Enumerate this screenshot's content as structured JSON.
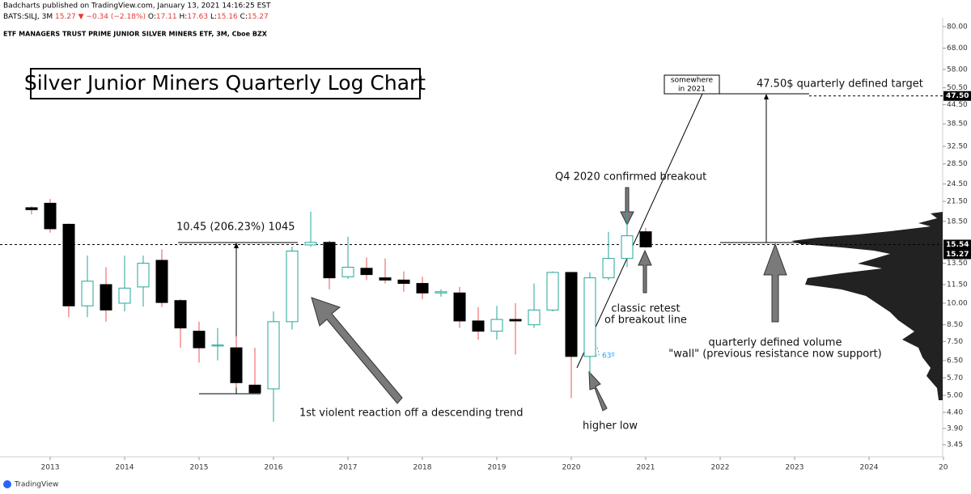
{
  "header": {
    "publisher": "Badcharts published on TradingView.com, January 13, 2021 14:16:25 EST",
    "symbol": "BATS:SILJ, 3M",
    "last": "15.27",
    "change": "▼ −0.34 (−2.18%)",
    "ohlc": [
      {
        "label": "O:",
        "value": "17.11"
      },
      {
        "label": "H:",
        "value": "17.63"
      },
      {
        "label": "L:",
        "value": "15.16"
      },
      {
        "label": "C:",
        "value": "15.27"
      }
    ],
    "instrument": "ETF MANAGERS TRUST PRIME JUNIOR SILVER MINERS ETF, 3M, Cboe BZX"
  },
  "footer": {
    "brand": "TradingView"
  },
  "chart_data": {
    "type": "candlestick",
    "log_scale": true,
    "title": "Silver Junior Miners Quarterly Log Chart",
    "x": [
      2012.75,
      2013,
      2013.25,
      2013.5,
      2013.75,
      2014,
      2014.25,
      2014.5,
      2014.75,
      2015,
      2015.25,
      2015.5,
      2015.75,
      2016,
      2016.25,
      2016.5,
      2016.75,
      2017,
      2017.25,
      2017.5,
      2017.75,
      2018,
      2018.25,
      2018.5,
      2018.75,
      2019,
      2019.25,
      2019.5,
      2019.75,
      2020,
      2020.25,
      2020.5,
      2020.75,
      2021
    ],
    "open": [
      20.5,
      21.2,
      18.1,
      9.8,
      11.5,
      10.0,
      11.3,
      13.8,
      10.2,
      8.1,
      7.25,
      7.15,
      5.4,
      5.25,
      8.7,
      15.5,
      15.8,
      12.2,
      13.0,
      12.1,
      11.9,
      11.6,
      10.8,
      10.8,
      8.75,
      8.1,
      8.85,
      8.5,
      9.5,
      12.6,
      6.7,
      12.1,
      14.0,
      17.11
    ],
    "high": [
      20.7,
      21.9,
      18.2,
      14.3,
      13.1,
      14.3,
      14.3,
      15.0,
      10.3,
      8.7,
      8.3,
      7.8,
      7.15,
      9.4,
      15.3,
      19.9,
      16.0,
      16.5,
      14.1,
      14.0,
      12.7,
      12.2,
      11.1,
      11.3,
      9.7,
      9.8,
      10.0,
      11.6,
      12.7,
      12.6,
      12.6,
      17.1,
      20.1,
      17.63
    ],
    "low": [
      19.5,
      17.0,
      9.0,
      9.0,
      8.7,
      9.4,
      9.75,
      9.7,
      7.15,
      6.4,
      6.5,
      5.3,
      5.1,
      4.1,
      8.2,
      15.3,
      11.1,
      12.0,
      11.9,
      11.6,
      10.9,
      10.3,
      10.5,
      8.3,
      7.6,
      7.6,
      6.8,
      8.3,
      9.4,
      4.9,
      5.8,
      11.9,
      13.1,
      15.16
    ],
    "close": [
      20.2,
      17.5,
      9.8,
      11.8,
      9.5,
      11.2,
      13.5,
      10.05,
      8.3,
      7.15,
      7.3,
      5.5,
      5.1,
      8.7,
      14.8,
      15.8,
      12.1,
      13.1,
      12.4,
      11.9,
      11.6,
      10.8,
      10.9,
      8.75,
      8.1,
      8.85,
      8.75,
      9.5,
      12.6,
      6.7,
      12.1,
      14.0,
      16.6,
      15.27
    ],
    "up_color": "#26a69a",
    "down_color": "#000000",
    "down_wick_color": "#ef5350",
    "xlim": [
      2012.326,
      2024.989
    ],
    "xticks": [
      2013,
      2014,
      2015,
      2016,
      2017,
      2018,
      2019,
      2020,
      2021,
      2022,
      2023,
      2024,
      {
        "value": 2025,
        "label": "20"
      }
    ],
    "ylim": [
      3.15,
      85.5
    ],
    "yticks": [
      {
        "value": 80,
        "label": "80.00"
      },
      {
        "value": 68,
        "label": "68.00"
      },
      {
        "value": 58,
        "label": "58.00"
      },
      {
        "value": 50.5,
        "label": "50.50"
      },
      {
        "value": 44.5,
        "label": "44.50"
      },
      {
        "value": 38.5,
        "label": "38.50"
      },
      {
        "value": 32.5,
        "label": "32.50"
      },
      {
        "value": 28.5,
        "label": "28.50"
      },
      {
        "value": 24.5,
        "label": "24.50"
      },
      {
        "value": 21.5,
        "label": "21.50"
      },
      {
        "value": 18.5,
        "label": "18.50"
      },
      {
        "value": 13.5,
        "label": "13.50"
      },
      {
        "value": 11.5,
        "label": "11.50"
      },
      {
        "value": 10,
        "label": "10.00"
      },
      {
        "value": 8.5,
        "label": "8.50"
      },
      {
        "value": 7.5,
        "label": "7.50"
      },
      {
        "value": 6.5,
        "label": "6.50"
      },
      {
        "value": 5.7,
        "label": "5.70"
      },
      {
        "value": 5,
        "label": "5.00"
      },
      {
        "value": 4.4,
        "label": "4.40"
      },
      {
        "value": 3.9,
        "label": "3.90"
      },
      {
        "value": 3.45,
        "label": "3.45"
      }
    ],
    "price_labels": [
      {
        "value": 47.5,
        "label": "47.50"
      },
      {
        "value": 15.54,
        "label": "15.54"
      },
      {
        "value": 15.27,
        "label": "15.27"
      }
    ],
    "annotations": {
      "measure": "10.45 (206.23%) 1045",
      "breakout": "Q4 2020 confirmed breakout",
      "somewhere": [
        "somewhere",
        "in 2021"
      ],
      "target": "47.50$ quarterly defined target",
      "retest": [
        "classic retest",
        "of breakout line"
      ],
      "wall": [
        "quarterly defined volume",
        "\"wall\" (previous resistance now support)"
      ],
      "reaction": "1st violent reaction off a descending trend",
      "higher_low": "higher low",
      "angle": "63º"
    }
  }
}
